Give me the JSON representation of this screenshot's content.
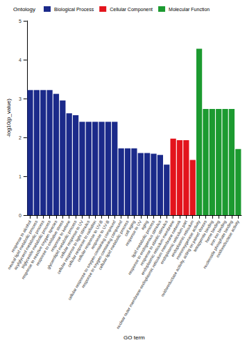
{
  "chart_data": {
    "type": "bar",
    "legend_title": "Ontology",
    "legend": "top",
    "grid": false,
    "x_label": "GO term",
    "y_label": "-log10(p_value)",
    "ylim": [
      0,
      5
    ],
    "yticks": [
      0,
      1,
      2,
      3,
      4,
      5
    ],
    "categories": [
      "response to alcohol",
      "neutral lipid metabolic process",
      "acylglycerol metabolic process",
      "triglyceride metabolic process",
      "response to reactive oxygen species",
      "response to oxidative stress",
      "response to ketone",
      "glycerolipid metabolic process",
      "cellular response to UV",
      "cellular response to light stimulus",
      "cellular response to radiation",
      "cellular response to UV-B",
      "response to UV-B",
      "cellular response to oxygen-containing compound",
      "response to oxygen-containing compound",
      "cellular lipid metabolic process",
      "cell aging",
      "response to UV",
      "aging",
      "lipid metabolic process",
      "response to endogenous stimulus",
      "response to abiotic stimulus",
      "endoplasmic reticulum membrane",
      "nuclear outer membrane-endoplasmic reticulum membrane network",
      "endoplasmic reticulum part",
      "endoplasmic reticulum",
      "monooxygenase activity",
      "oxidoreductase activity, acting on paired donors",
      "tetrapyrrole binding",
      "heme binding",
      "iron ion binding",
      "nucleoside phosphate binding",
      "oxidoreductase activity"
    ],
    "series": [
      {
        "name": "Biological Process",
        "color": "#1b2a8a",
        "values": [
          3.22,
          3.22,
          3.22,
          3.22,
          3.12,
          2.95,
          2.62,
          2.57,
          2.4,
          2.4,
          2.4,
          2.4,
          2.4,
          2.4,
          1.72,
          1.72,
          1.72,
          1.6,
          1.6,
          1.58,
          1.55,
          1.3,
          null,
          null,
          null,
          null,
          null,
          null,
          null,
          null,
          null,
          null,
          null
        ]
      },
      {
        "name": "Cellular Component",
        "color": "#e3141c",
        "values": [
          null,
          null,
          null,
          null,
          null,
          null,
          null,
          null,
          null,
          null,
          null,
          null,
          null,
          null,
          null,
          null,
          null,
          null,
          null,
          null,
          null,
          null,
          1.97,
          1.93,
          1.93,
          1.42,
          null,
          null,
          null,
          null,
          null,
          null,
          null
        ]
      },
      {
        "name": "Molecular Function",
        "color": "#1c9a30",
        "values": [
          null,
          null,
          null,
          null,
          null,
          null,
          null,
          null,
          null,
          null,
          null,
          null,
          null,
          null,
          null,
          null,
          null,
          null,
          null,
          null,
          null,
          null,
          null,
          null,
          null,
          null,
          4.28,
          2.73,
          2.73,
          2.73,
          2.73,
          2.73,
          1.7
        ]
      }
    ]
  }
}
